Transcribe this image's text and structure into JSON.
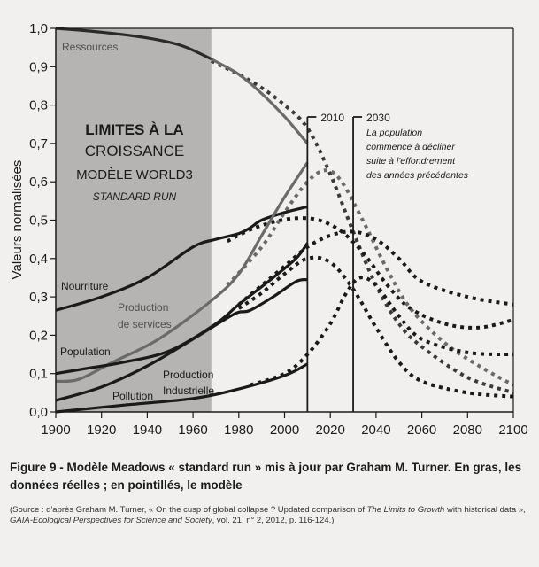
{
  "chart_data": {
    "type": "line",
    "title": "Limites à la croissance — Modèle World3 — Standard Run",
    "title_lines": [
      "LIMITES À LA",
      "CROISSANCE",
      "MODÈLE WORLD3",
      "STANDARD RUN"
    ],
    "xlabel": "",
    "ylabel": "Valeurs normalisées",
    "xlim": [
      1900,
      2100
    ],
    "ylim": [
      0,
      1
    ],
    "x_ticks": [
      1900,
      1920,
      1940,
      1960,
      1980,
      2000,
      2020,
      2040,
      2060,
      2080,
      2100
    ],
    "y_ticks": [
      "0,0",
      "0,1",
      "0,2",
      "0,3",
      "0,4",
      "0,5",
      "0,6",
      "0,7",
      "0,8",
      "0,9",
      "1,0"
    ],
    "y_tick_values": [
      0,
      0.1,
      0.2,
      0.3,
      0.4,
      0.5,
      0.6,
      0.7,
      0.8,
      0.9,
      1.0
    ],
    "grid": false,
    "shaded_range": [
      1900,
      1968
    ],
    "annotations": [
      {
        "year": 2010,
        "label": "2010"
      },
      {
        "year": 2030,
        "label": "2030",
        "text": [
          "La population",
          "commence à décliner",
          "suite à l'effondrement",
          "des années précédentes"
        ]
      }
    ],
    "series": [
      {
        "name": "Ressources",
        "kind": "actual",
        "color": "#2a2a2a",
        "x": [
          1900,
          1920,
          1940,
          1955,
          1968
        ],
        "y": [
          1.0,
          0.99,
          0.975,
          0.955,
          0.92
        ]
      },
      {
        "name": "Ressources",
        "kind": "actual-recent",
        "color": "#6a6a6a",
        "x": [
          1968,
          1980,
          1990,
          2000,
          2010
        ],
        "y": [
          0.92,
          0.88,
          0.83,
          0.77,
          0.7
        ]
      },
      {
        "name": "Ressources",
        "kind": "model",
        "color": "#3a3a3a",
        "x": [
          1968,
          1980,
          1990,
          2000,
          2010,
          2020,
          2030,
          2040,
          2050,
          2060,
          2080,
          2100
        ],
        "y": [
          0.915,
          0.88,
          0.845,
          0.8,
          0.74,
          0.62,
          0.47,
          0.33,
          0.23,
          0.17,
          0.09,
          0.05
        ]
      },
      {
        "name": "Nourriture",
        "kind": "actual",
        "color": "#1a1a1a",
        "x": [
          1900,
          1920,
          1940,
          1960,
          1970,
          1980,
          1985,
          1990,
          2000,
          2010
        ],
        "y": [
          0.265,
          0.3,
          0.35,
          0.43,
          0.45,
          0.465,
          0.48,
          0.5,
          0.52,
          0.535
        ]
      },
      {
        "name": "Nourriture",
        "kind": "model",
        "color": "#1a1a1a",
        "x": [
          1975,
          1985,
          1995,
          2005,
          2015,
          2025,
          2035,
          2045,
          2055,
          2070,
          2085,
          2100
        ],
        "y": [
          0.445,
          0.475,
          0.495,
          0.505,
          0.5,
          0.47,
          0.41,
          0.33,
          0.27,
          0.23,
          0.22,
          0.24
        ]
      },
      {
        "name": "Production de services",
        "kind": "actual",
        "color": "#6a6a6a",
        "x": [
          1900,
          1910,
          1925,
          1945,
          1968,
          1980,
          1990,
          2000,
          2010
        ],
        "y": [
          0.08,
          0.085,
          0.13,
          0.19,
          0.29,
          0.36,
          0.46,
          0.56,
          0.65
        ]
      },
      {
        "name": "Production de services",
        "kind": "model",
        "color": "#6a6a6a",
        "x": [
          1975,
          1990,
          2000,
          2010,
          2018,
          2025,
          2035,
          2045,
          2055,
          2070,
          2085,
          2100
        ],
        "y": [
          0.33,
          0.43,
          0.52,
          0.6,
          0.63,
          0.6,
          0.49,
          0.37,
          0.27,
          0.18,
          0.12,
          0.07
        ]
      },
      {
        "name": "Population",
        "kind": "actual",
        "color": "#1a1a1a",
        "x": [
          1900,
          1915,
          1930,
          1950,
          1970,
          1980,
          1995,
          2005,
          2010
        ],
        "y": [
          0.1,
          0.115,
          0.13,
          0.16,
          0.23,
          0.28,
          0.35,
          0.4,
          0.44
        ]
      },
      {
        "name": "Population",
        "kind": "model",
        "color": "#1a1a1a",
        "x": [
          1980,
          1990,
          2000,
          2010,
          2020,
          2030,
          2040,
          2050,
          2060,
          2080,
          2100
        ],
        "y": [
          0.28,
          0.33,
          0.38,
          0.43,
          0.46,
          0.47,
          0.45,
          0.4,
          0.34,
          0.3,
          0.28
        ]
      },
      {
        "name": "Production Industrielle",
        "kind": "actual",
        "color": "#1a1a1a",
        "x": [
          1900,
          1920,
          1940,
          1960,
          1975,
          1980,
          1985,
          1995,
          2005,
          2010
        ],
        "y": [
          0.03,
          0.065,
          0.12,
          0.19,
          0.245,
          0.26,
          0.265,
          0.3,
          0.34,
          0.345
        ]
      },
      {
        "name": "Production Industrielle",
        "kind": "model",
        "color": "#1a1a1a",
        "x": [
          1980,
          1990,
          2000,
          2010,
          2020,
          2030,
          2040,
          2050,
          2060,
          2080,
          2100
        ],
        "y": [
          0.27,
          0.31,
          0.36,
          0.4,
          0.39,
          0.32,
          0.22,
          0.13,
          0.08,
          0.05,
          0.04
        ]
      },
      {
        "name": "Pollution",
        "kind": "actual",
        "color": "#1a1a1a",
        "x": [
          1900,
          1930,
          1960,
          1980,
          2000,
          2010
        ],
        "y": [
          0.0,
          0.018,
          0.035,
          0.06,
          0.095,
          0.125
        ]
      },
      {
        "name": "Pollution",
        "kind": "model",
        "color": "#1a1a1a",
        "x": [
          1985,
          2000,
          2010,
          2020,
          2027,
          2033,
          2040,
          2050,
          2060,
          2080,
          2100
        ],
        "y": [
          0.07,
          0.1,
          0.15,
          0.23,
          0.31,
          0.35,
          0.33,
          0.25,
          0.19,
          0.155,
          0.15
        ]
      }
    ],
    "series_labels": [
      {
        "text": "Ressources",
        "style": "grey"
      },
      {
        "text": "Nourriture",
        "style": "dark"
      },
      {
        "text": "Production",
        "style": "grey"
      },
      {
        "text": "de services",
        "style": "grey"
      },
      {
        "text": "Population",
        "style": "dark"
      },
      {
        "text": "Production",
        "style": "dark"
      },
      {
        "text": "Industrielle",
        "style": "dark"
      },
      {
        "text": "Pollution",
        "style": "dark"
      }
    ]
  },
  "caption": {
    "title": "Figure 9 - Modèle Meadows « standard run » mis à jour par Graham M. Turner. En gras, les données réelles ; en pointillés, le modèle",
    "source_parts": [
      {
        "text": "(Source : d'après Graham M. Turner, « On the cusp of global collapse ? Updated comparison of ",
        "italic": false
      },
      {
        "text": "The Limits to Growth",
        "italic": true
      },
      {
        "text": " with historical data », ",
        "italic": false
      },
      {
        "text": "GAIA-Ecological Perspectives for Science and Society",
        "italic": true
      },
      {
        "text": ", vol. 21, n° 2, 2012, p. 116-124.)",
        "italic": false
      }
    ]
  }
}
